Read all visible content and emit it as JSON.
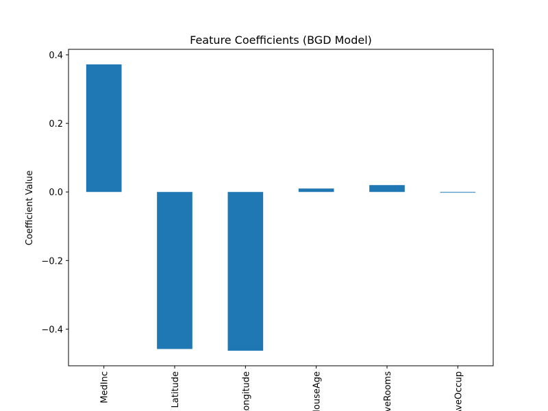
{
  "chart_data": {
    "type": "bar",
    "title": "Feature Coefficients (BGD Model)",
    "xlabel": "",
    "ylabel": "Coefficient Value",
    "categories": [
      "MedInc",
      "Latitude",
      "Longitude",
      "HouseAge",
      "AveRooms",
      "AveOccup"
    ],
    "values": [
      0.372,
      -0.458,
      -0.463,
      0.01,
      0.02,
      -0.002
    ],
    "ylim": [
      -0.507,
      0.416
    ],
    "yticks": [
      -0.4,
      -0.2,
      0.0,
      0.2,
      0.4
    ],
    "ytick_labels": [
      "−0.4",
      "−0.2",
      "0.0",
      "0.2",
      "0.4"
    ],
    "bar_color": "#1f77b4",
    "grid": false,
    "legend": "none"
  }
}
